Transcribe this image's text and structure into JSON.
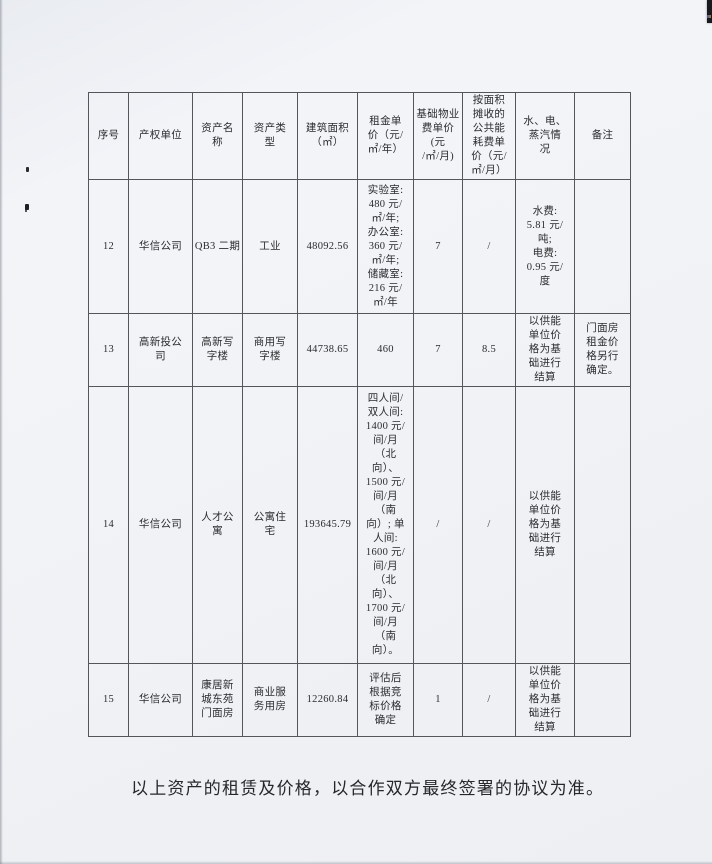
{
  "document": {
    "table": {
      "headers": [
        "序号",
        "产权单位",
        "资产名\n称",
        "资产类\n型",
        "建筑面积\n（㎡）",
        "租金单\n价（元/\n㎡/年）",
        "基础物业\n费单价(元\n/㎡/月)",
        "按面积\n摊收的\n公共能\n耗费单\n价（元/\n㎡/月）",
        "水、电、\n蒸汽情\n况",
        "备注"
      ],
      "rows": [
        {
          "cells": [
            "12",
            "华信公司",
            "QB3 二期",
            "工业",
            "48092.56",
            "实验室:\n480 元/\n㎡/年;\n办公室:\n360 元/\n㎡/年;\n储藏室:\n216 元/\n㎡/年",
            "7",
            "/",
            "水费:\n5.81 元/\n吨;\n电费:\n0.95 元/\n度",
            ""
          ]
        },
        {
          "cells": [
            "13",
            "高新投公\n司",
            "高新写\n字楼",
            "商用写\n字楼",
            "44738.65",
            "460",
            "7",
            "8.5",
            "以供能\n单位价\n格为基\n础进行\n结算",
            "门面房\n租金价\n格另行\n确定。"
          ]
        },
        {
          "cells": [
            "14",
            "华信公司",
            "人才公\n寓",
            "公寓住\n宅",
            "193645.79",
            "四人间/\n双人间:\n1400 元/\n间/月\n（北\n向）、\n1500 元/\n间/月\n（南\n向）; 单\n人间:\n1600 元/\n间/月\n（北\n向）、\n1700 元/\n间/月\n（南\n向）。",
            "/",
            "/",
            "以供能\n单位价\n格为基\n础进行\n结算",
            ""
          ]
        },
        {
          "cells": [
            "15",
            "华信公司",
            "康居新\n城东苑\n门面房",
            "商业服\n务用房",
            "12260.84",
            "评估后\n根据竞\n标价格\n确定",
            "1",
            "/",
            "以供能\n单位价\n格为基\n础进行\n结算",
            ""
          ]
        }
      ]
    },
    "footer_note": "以上资产的租赁及价格，以合作双方最终签署的协议为准。"
  }
}
